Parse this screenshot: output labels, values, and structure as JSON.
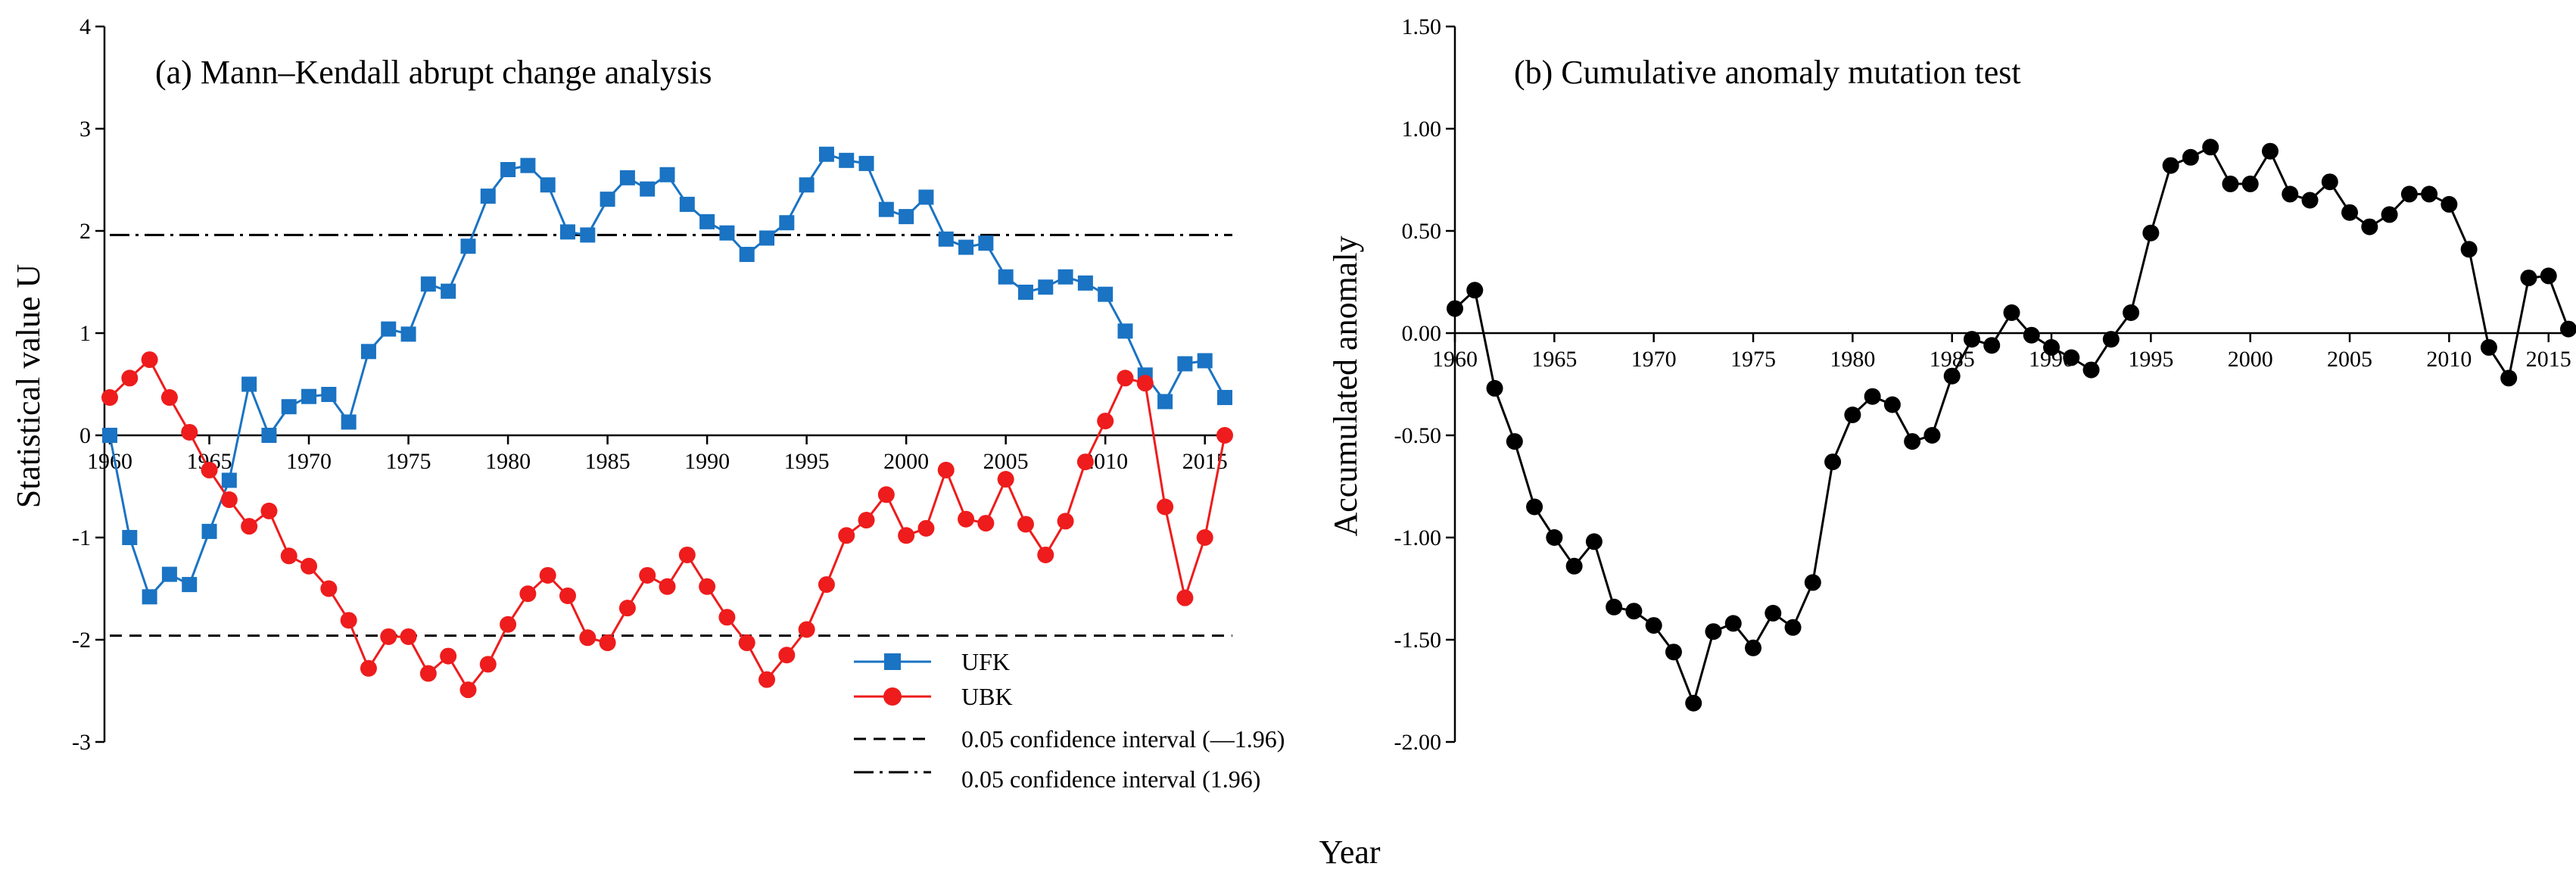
{
  "figure": {
    "xlabel": "Year"
  },
  "colors": {
    "ufk": "#1a73c3",
    "ubk": "#ee1c1c",
    "cum": "#000000"
  },
  "chart_data": [
    {
      "type": "line",
      "title": "(a) Mann–Kendall abrupt change analysis",
      "ylabel": "Statistical value U",
      "xlabel": "Year",
      "ylim": [
        -3,
        4
      ],
      "yticks": [
        -3,
        -2,
        -1,
        0,
        1,
        2,
        3,
        4
      ],
      "ytick_labels": [
        "-3",
        "-2",
        "-1",
        "0",
        "1",
        "2",
        "3",
        "4"
      ],
      "xlim": [
        1960,
        2016
      ],
      "xticks": [
        1960,
        1965,
        1970,
        1975,
        1980,
        1985,
        1990,
        1995,
        2000,
        2005,
        2010,
        2015
      ],
      "xtick_labels": [
        "1960",
        "1965",
        "1970",
        "1975",
        "1980",
        "1985",
        "1990",
        "1995",
        "2000",
        "2005",
        "2010",
        "2015"
      ],
      "x": [
        1960,
        1961,
        1962,
        1963,
        1964,
        1965,
        1966,
        1967,
        1968,
        1969,
        1970,
        1971,
        1972,
        1973,
        1974,
        1975,
        1976,
        1977,
        1978,
        1979,
        1980,
        1981,
        1982,
        1983,
        1984,
        1985,
        1986,
        1987,
        1988,
        1989,
        1990,
        1991,
        1992,
        1993,
        1994,
        1995,
        1996,
        1997,
        1998,
        1999,
        2000,
        2001,
        2002,
        2003,
        2004,
        2005,
        2006,
        2007,
        2008,
        2009,
        2010,
        2011,
        2012,
        2013,
        2014,
        2015,
        2016
      ],
      "series": [
        {
          "name": "UFK",
          "marker": "square",
          "values": [
            0.0,
            -1.0,
            -1.58,
            -1.36,
            -1.46,
            -0.94,
            -0.44,
            0.5,
            0.0,
            0.28,
            0.38,
            0.4,
            0.13,
            0.82,
            1.04,
            0.99,
            1.48,
            1.41,
            1.85,
            2.34,
            2.6,
            2.64,
            2.45,
            1.99,
            1.96,
            2.31,
            2.52,
            2.41,
            2.55,
            2.26,
            2.09,
            1.98,
            1.77,
            1.93,
            2.08,
            2.45,
            2.75,
            2.69,
            2.66,
            2.21,
            2.14,
            2.33,
            1.92,
            1.84,
            1.88,
            1.55,
            1.4,
            1.45,
            1.55,
            1.49,
            1.38,
            1.02,
            0.59,
            0.33,
            0.7,
            0.73,
            0.37
          ]
        },
        {
          "name": "UBK",
          "marker": "circle",
          "values": [
            0.37,
            0.56,
            0.74,
            0.37,
            0.03,
            -0.34,
            -0.63,
            -0.89,
            -0.74,
            -1.18,
            -1.28,
            -1.5,
            -1.81,
            -2.28,
            -1.97,
            -1.97,
            -2.33,
            -2.16,
            -2.49,
            -2.24,
            -1.85,
            -1.55,
            -1.37,
            -1.57,
            -1.98,
            -2.03,
            -1.69,
            -1.37,
            -1.48,
            -1.17,
            -1.48,
            -1.78,
            -2.03,
            -2.39,
            -2.15,
            -1.9,
            -1.46,
            -0.98,
            -0.83,
            -0.58,
            -0.98,
            -0.91,
            -0.34,
            -0.82,
            -0.86,
            -0.43,
            -0.87,
            -1.17,
            -0.84,
            -0.26,
            0.14,
            0.56,
            0.51,
            -0.7,
            -1.59,
            -1.0,
            0.0
          ]
        }
      ],
      "reference_lines": [
        {
          "value": -1.96,
          "style": "dashed"
        },
        {
          "value": 1.96,
          "style": "dashdot"
        }
      ],
      "legend": {
        "placement": "bottom-right",
        "items": [
          {
            "label": "UFK",
            "style": "line-square"
          },
          {
            "label": "UBK",
            "style": "line-circle"
          },
          {
            "label": "0.05 confidence interval (—1.96)",
            "style": "dashed"
          },
          {
            "label": "0.05 confidence interval (1.96)",
            "style": "dashdot"
          }
        ]
      }
    },
    {
      "type": "line",
      "title": "(b) Cumulative anomaly mutation test",
      "ylabel": "Accumulated anomaly",
      "xlabel": "Year",
      "ylim": [
        -2.0,
        1.5
      ],
      "yticks": [
        -2.0,
        -1.5,
        -1.0,
        -0.5,
        0.0,
        0.5,
        1.0,
        1.5
      ],
      "ytick_labels": [
        "-2.00",
        "-1.50",
        "-1.00",
        "-0.50",
        "0.00",
        "0.50",
        "1.00",
        "1.50"
      ],
      "xlim": [
        1960,
        2016
      ],
      "xticks": [
        1960,
        1965,
        1970,
        1975,
        1980,
        1985,
        1990,
        1995,
        2000,
        2005,
        2010,
        2015
      ],
      "xtick_labels": [
        "1960",
        "1965",
        "1970",
        "1975",
        "1980",
        "1985",
        "1990",
        "1995",
        "2000",
        "2005",
        "2010",
        "2015"
      ],
      "x": [
        1960,
        1961,
        1962,
        1963,
        1964,
        1965,
        1966,
        1967,
        1968,
        1969,
        1970,
        1971,
        1972,
        1973,
        1974,
        1975,
        1976,
        1977,
        1978,
        1979,
        1980,
        1981,
        1982,
        1983,
        1984,
        1985,
        1986,
        1987,
        1988,
        1989,
        1990,
        1991,
        1992,
        1993,
        1994,
        1995,
        1996,
        1997,
        1998,
        1999,
        2000,
        2001,
        2002,
        2003,
        2004,
        2005,
        2006,
        2007,
        2008,
        2009,
        2010,
        2011,
        2012,
        2013,
        2014,
        2015,
        2016
      ],
      "series": [
        {
          "name": "Accumulated anomaly",
          "marker": "circle",
          "values": [
            0.12,
            0.21,
            -0.27,
            -0.53,
            -0.85,
            -1.0,
            -1.14,
            -1.02,
            -1.34,
            -1.36,
            -1.43,
            -1.56,
            -1.81,
            -1.46,
            -1.42,
            -1.54,
            -1.37,
            -1.44,
            -1.22,
            -0.63,
            -0.4,
            -0.31,
            -0.35,
            -0.53,
            -0.5,
            -0.21,
            -0.03,
            -0.06,
            0.1,
            -0.01,
            -0.07,
            -0.12,
            -0.18,
            -0.03,
            0.1,
            0.49,
            0.82,
            0.86,
            0.91,
            0.73,
            0.73,
            0.89,
            0.68,
            0.65,
            0.74,
            0.59,
            0.52,
            0.58,
            0.68,
            0.68,
            0.63,
            0.41,
            -0.07,
            -0.22,
            0.27,
            0.28,
            0.02
          ]
        }
      ]
    }
  ]
}
